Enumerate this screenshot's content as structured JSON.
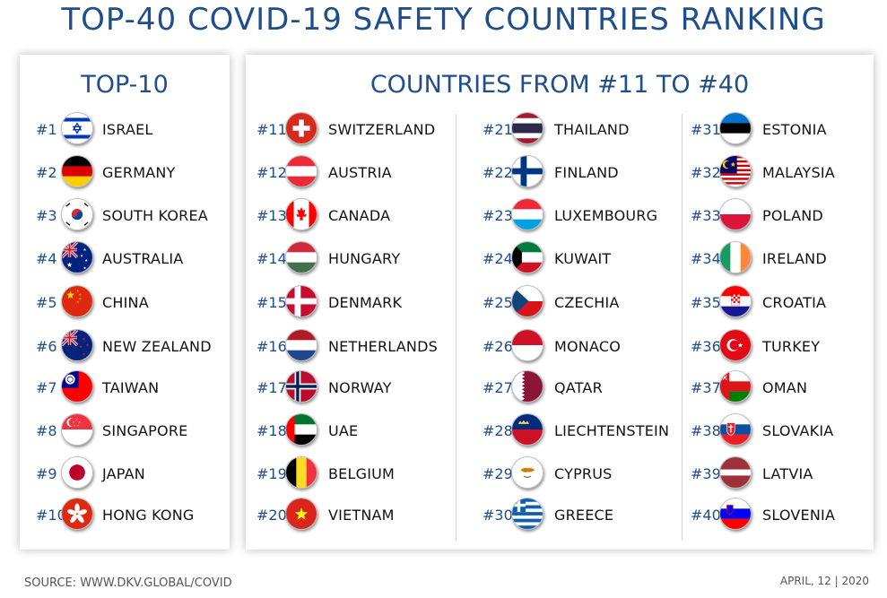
{
  "title": "TOP-40 COVID-19 SAFETY COUNTRIES RANKING",
  "left_heading": "TOP-10",
  "right_heading": "COUNTRIES FROM #11 TO #40",
  "footer_source": "SOURCE: WWW.DKV.GLOBAL/COVID",
  "footer_date": "APRIL, 12 | 2020",
  "columns": [
    [
      {
        "rank": "#1",
        "country": "ISRAEL",
        "flag": "israel-flag-icon"
      },
      {
        "rank": "#2",
        "country": "GERMANY",
        "flag": "germany-flag-icon"
      },
      {
        "rank": "#3",
        "country": "SOUTH KOREA",
        "flag": "south-korea-flag-icon"
      },
      {
        "rank": "#4",
        "country": "AUSTRALIA",
        "flag": "australia-flag-icon"
      },
      {
        "rank": "#5",
        "country": "CHINA",
        "flag": "china-flag-icon"
      },
      {
        "rank": "#6",
        "country": "NEW ZEALAND",
        "flag": "new-zealand-flag-icon"
      },
      {
        "rank": "#7",
        "country": "TAIWAN",
        "flag": "taiwan-flag-icon"
      },
      {
        "rank": "#8",
        "country": "SINGAPORE",
        "flag": "singapore-flag-icon"
      },
      {
        "rank": "#9",
        "country": "JAPAN",
        "flag": "japan-flag-icon"
      },
      {
        "rank": "#10",
        "country": "HONG KONG",
        "flag": "hong-kong-flag-icon"
      }
    ],
    [
      {
        "rank": "#11",
        "country": "SWITZERLAND",
        "flag": "switzerland-flag-icon"
      },
      {
        "rank": "#12",
        "country": "AUSTRIA",
        "flag": "austria-flag-icon"
      },
      {
        "rank": "#13",
        "country": "CANADA",
        "flag": "canada-flag-icon"
      },
      {
        "rank": "#14",
        "country": "HUNGARY",
        "flag": "hungary-flag-icon"
      },
      {
        "rank": "#15",
        "country": "DENMARK",
        "flag": "denmark-flag-icon"
      },
      {
        "rank": "#16",
        "country": "NETHERLANDS",
        "flag": "netherlands-flag-icon"
      },
      {
        "rank": "#17",
        "country": "NORWAY",
        "flag": "norway-flag-icon"
      },
      {
        "rank": "#18",
        "country": "UAE",
        "flag": "uae-flag-icon"
      },
      {
        "rank": "#19",
        "country": "BELGIUM",
        "flag": "belgium-flag-icon"
      },
      {
        "rank": "#20",
        "country": "VIETNAM",
        "flag": "vietnam-flag-icon"
      }
    ],
    [
      {
        "rank": "#21",
        "country": "THAILAND",
        "flag": "thailand-flag-icon"
      },
      {
        "rank": "#22",
        "country": "FINLAND",
        "flag": "finland-flag-icon"
      },
      {
        "rank": "#23",
        "country": "LUXEMBOURG",
        "flag": "luxembourg-flag-icon"
      },
      {
        "rank": "#24",
        "country": "KUWAIT",
        "flag": "kuwait-flag-icon"
      },
      {
        "rank": "#25",
        "country": "CZECHIA",
        "flag": "czechia-flag-icon"
      },
      {
        "rank": "#26",
        "country": "MONACO",
        "flag": "monaco-flag-icon"
      },
      {
        "rank": "#27",
        "country": "QATAR",
        "flag": "qatar-flag-icon"
      },
      {
        "rank": "#28",
        "country": "LIECHTENSTEIN",
        "flag": "liechtenstein-flag-icon"
      },
      {
        "rank": "#29",
        "country": "CYPRUS",
        "flag": "cyprus-flag-icon"
      },
      {
        "rank": "#30",
        "country": "GREECE",
        "flag": "greece-flag-icon"
      }
    ],
    [
      {
        "rank": "#31",
        "country": "ESTONIA",
        "flag": "estonia-flag-icon"
      },
      {
        "rank": "#32",
        "country": "MALAYSIA",
        "flag": "malaysia-flag-icon"
      },
      {
        "rank": "#33",
        "country": "POLAND",
        "flag": "poland-flag-icon"
      },
      {
        "rank": "#34",
        "country": "IRELAND",
        "flag": "ireland-flag-icon"
      },
      {
        "rank": "#35",
        "country": "CROATIA",
        "flag": "croatia-flag-icon"
      },
      {
        "rank": "#36",
        "country": "TURKEY",
        "flag": "turkey-flag-icon"
      },
      {
        "rank": "#37",
        "country": "OMAN",
        "flag": "oman-flag-icon"
      },
      {
        "rank": "#38",
        "country": "SLOVAKIA",
        "flag": "slovakia-flag-icon"
      },
      {
        "rank": "#39",
        "country": "LATVIA",
        "flag": "latvia-flag-icon"
      },
      {
        "rank": "#40",
        "country": "SLOVENIA",
        "flag": "slovenia-flag-icon"
      }
    ]
  ]
}
